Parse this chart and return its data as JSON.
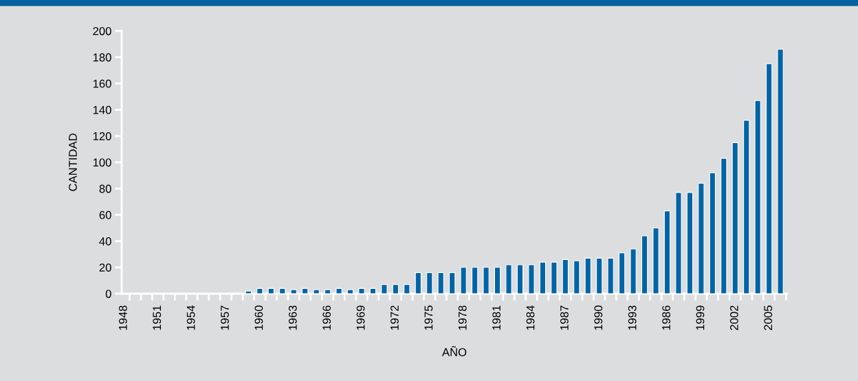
{
  "chart_data": {
    "type": "bar",
    "xlabel": "AÑO",
    "ylabel": "CANTIDAD",
    "categories": [
      "1948",
      null,
      null,
      "1951",
      null,
      null,
      "1954",
      null,
      null,
      "1957",
      null,
      null,
      "1960",
      null,
      null,
      "1963",
      null,
      null,
      "1966",
      null,
      null,
      "1969",
      null,
      null,
      "1972",
      null,
      null,
      "1975",
      null,
      null,
      "1978",
      null,
      null,
      "1981",
      null,
      null,
      "1984",
      null,
      null,
      "1987",
      null,
      null,
      "1990",
      null,
      null,
      "1993",
      null,
      null,
      "1986",
      null,
      null,
      "1999",
      null,
      null,
      "2002",
      null,
      null,
      "2005",
      null
    ],
    "values": [
      null,
      null,
      null,
      null,
      null,
      null,
      null,
      null,
      null,
      null,
      null,
      2,
      4,
      4,
      4,
      3,
      4,
      3,
      3,
      4,
      3,
      4,
      4,
      7,
      7,
      7,
      16,
      16,
      16,
      16,
      20,
      20,
      20,
      20,
      22,
      22,
      22,
      24,
      24,
      26,
      25,
      27,
      27,
      27,
      31,
      34,
      44,
      50,
      63,
      77,
      77,
      84,
      92,
      103,
      115,
      132,
      147,
      175,
      186
    ],
    "color": "#0064a5",
    "ylim": [
      0,
      200
    ],
    "yticks": [
      0,
      20,
      40,
      60,
      80,
      100,
      120,
      140,
      160,
      180,
      200
    ],
    "grid": false,
    "legend": false
  }
}
